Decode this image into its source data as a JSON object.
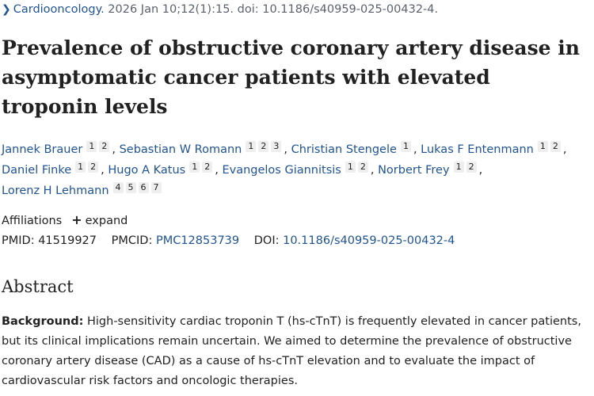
{
  "citation": {
    "journal": "Cardiooncology.",
    "details": "2026 Jan 10;12(1):15. doi: 10.1186/s40959-025-00432-4."
  },
  "title": "Prevalence of obstructive coronary artery disease in asymptomatic cancer patients with elevated troponin levels",
  "authors": [
    {
      "name": "Jannek Brauer",
      "affiliations": [
        "1",
        "2"
      ]
    },
    {
      "name": "Sebastian W Romann",
      "affiliations": [
        "1",
        "2",
        "3"
      ]
    },
    {
      "name": "Christian Stengele",
      "affiliations": [
        "1"
      ]
    },
    {
      "name": "Lukas F Entenmann",
      "affiliations": [
        "1",
        "2"
      ]
    },
    {
      "name": "Daniel Finke",
      "affiliations": [
        "1",
        "2"
      ]
    },
    {
      "name": "Hugo A Katus",
      "affiliations": [
        "1",
        "2"
      ]
    },
    {
      "name": "Evangelos Giannitsis",
      "affiliations": [
        "1",
        "2"
      ]
    },
    {
      "name": "Norbert Frey",
      "affiliations": [
        "1",
        "2"
      ]
    },
    {
      "name": "Lorenz H Lehmann",
      "affiliations": [
        "4",
        "5",
        "6",
        "7"
      ]
    }
  ],
  "affiliations": {
    "label": "Affiliations",
    "expand_label": "expand"
  },
  "identifiers": {
    "pmid_label": "PMID:",
    "pmid": "41519927",
    "pmcid_label": "PMCID:",
    "pmcid": "PMC12853739",
    "doi_label": "DOI:",
    "doi": "10.1186/s40959-025-00432-4"
  },
  "abstract": {
    "heading": "Abstract",
    "background_label": "Background:",
    "background_text": "High-sensitivity cardiac troponin T (hs-cTnT) is frequently elevated in cancer patients, but its clinical implications remain uncertain. We aimed to determine the prevalence of obstructive coronary artery disease (CAD) as a cause of hs-cTnT elevation and to evaluate the impact of cardiovascular risk factors and oncologic therapies."
  },
  "colors": {
    "link": "#205493",
    "text": "#212121",
    "muted": "#5b616b",
    "badge": "#eeeeee"
  }
}
